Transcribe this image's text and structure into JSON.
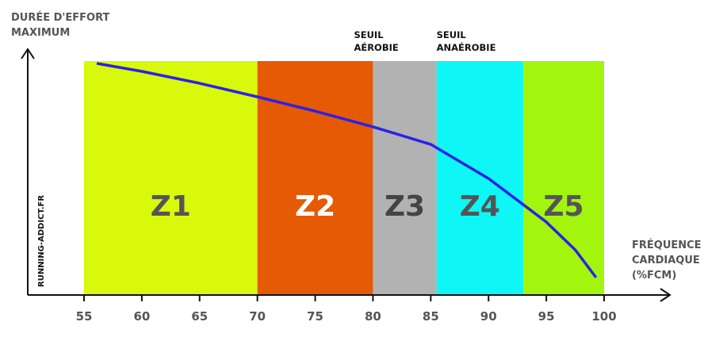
{
  "chart_data": {
    "type": "zones",
    "y_label": [
      "DURÉE D'EFFORT",
      "MAXIMUM"
    ],
    "x_label": [
      "FRÉQUENCE",
      "CARDIAQUE",
      "(%FCM)"
    ],
    "annotations": [
      [
        "SEUIL",
        "AÉROBIE"
      ],
      [
        "SEUIL",
        "ANAÉROBIE"
      ]
    ],
    "watermark": "RUNNING-ADDICT.FR",
    "xlim": [
      55,
      100
    ],
    "xticks": [
      55,
      60,
      65,
      70,
      75,
      80,
      85,
      90,
      95,
      100
    ],
    "ylim": [
      0,
      100
    ],
    "zones": [
      {
        "name": "Z1",
        "from": 55,
        "to": 70,
        "color": "#d9f90c",
        "label_color": "#555555"
      },
      {
        "name": "Z2",
        "from": 70,
        "to": 80,
        "color": "#e65a05",
        "label_color": "#ffffff"
      },
      {
        "name": "Z3",
        "from": 80,
        "to": 85.5,
        "color": "#b2b2b2",
        "label_color": "#444444"
      },
      {
        "name": "Z4",
        "from": 85.5,
        "to": 93,
        "color": "#0ff6f6",
        "label_color": "#555555"
      },
      {
        "name": "Z5",
        "from": 93,
        "to": 100,
        "color": "#a3f50e",
        "label_color": "#555555"
      }
    ],
    "series": [
      {
        "color": "#2b22e6",
        "x": [
          56.1,
          60,
          65,
          70,
          75,
          80,
          85,
          90,
          95,
          97.5,
          99.3
        ],
        "values": [
          99,
          95.6,
          90.5,
          84.7,
          78.6,
          71.9,
          64.4,
          49.8,
          31.2,
          19.3,
          7.5
        ]
      }
    ]
  }
}
